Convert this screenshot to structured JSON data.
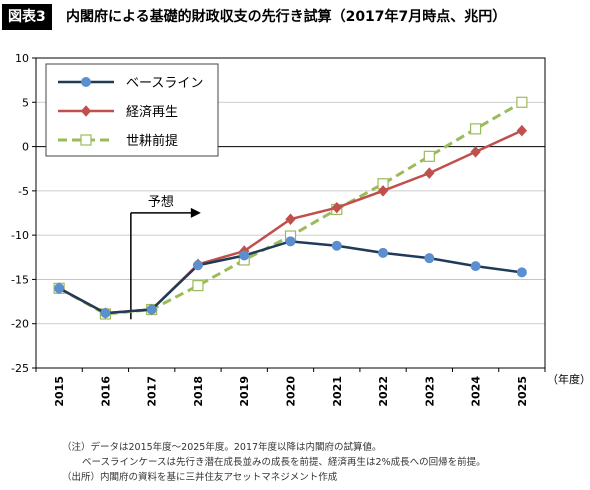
{
  "header": {
    "figure_tag": "図表3",
    "title": "内閣府による基礎的財政収支の先行き試算（2017年7月時点、兆円）"
  },
  "chart_data": {
    "type": "line",
    "x": [
      "2015",
      "2016",
      "2017",
      "2018",
      "2019",
      "2020",
      "2021",
      "2022",
      "2023",
      "2024",
      "2025"
    ],
    "xlabel": "（年度）",
    "ylabel": "",
    "ylim": [
      -25,
      10
    ],
    "yticks": [
      10,
      5,
      0,
      -5,
      -10,
      -15,
      -20,
      -25
    ],
    "grid": "horizontal",
    "legend_position": "top-left",
    "series": [
      {
        "name": "ベースライン",
        "color": "#1f3b57",
        "marker": "circle",
        "marker_color": "#5b8fd0",
        "dash": "solid",
        "values": [
          -16,
          -18.8,
          -18.4,
          -13.4,
          -12.3,
          -10.7,
          -11.2,
          -12,
          -12.6,
          -13.5,
          -14.2
        ]
      },
      {
        "name": "経済再生",
        "color": "#c0504d",
        "marker": "diamond",
        "marker_color": "#c0504d",
        "dash": "solid",
        "values": [
          -16,
          -18.8,
          -18.4,
          -13.3,
          -11.8,
          -8.2,
          -6.9,
          -5,
          -3,
          -0.6,
          1.8
        ]
      },
      {
        "name": "世耕前提",
        "color": "#9bbb59",
        "marker": "square",
        "marker_color": "#ffffff",
        "dash": "dashed",
        "values": [
          -16,
          -18.9,
          -18.4,
          -15.7,
          -12.8,
          -10.1,
          -7.1,
          -4.2,
          -1.1,
          2,
          5
        ]
      }
    ],
    "annotations": [
      {
        "text": "予想",
        "at_x": "2017",
        "at_y": -5
      }
    ]
  },
  "notes": [
    "（注）データは2015年度～2025年度。2017年度以降は内閣府の試算値。",
    "ベースラインケースは先行き潜在成長並みの成長を前提、経済再生は2%成長への回帰を前提。",
    "（出所）内閣府の資料を基に三井住友アセットマネジメント作成"
  ]
}
